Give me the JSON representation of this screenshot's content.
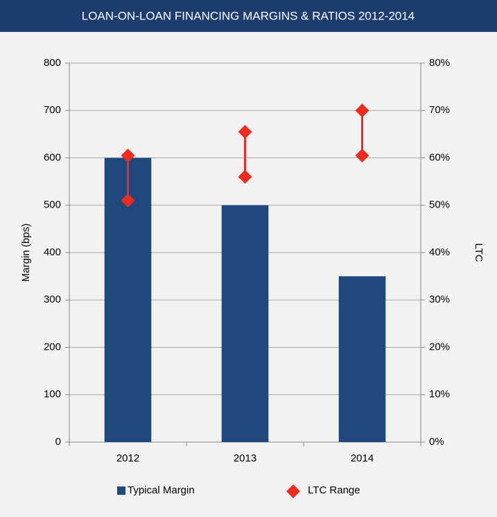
{
  "chart_data": {
    "type": "bar_range",
    "title": "LOAN-ON-LOAN FINANCING MARGINS & RATIOS 2012-2014",
    "y_label": "Margin (bps)",
    "y2_label": "LTC",
    "categories": [
      "2012",
      "2013",
      "2014"
    ],
    "series": [
      {
        "name": "Typical Margin",
        "color": "#1f497d",
        "values": [
          600,
          500,
          350
        ]
      },
      {
        "name": "LTC Range",
        "color": "#f02a1e",
        "axis": "y2",
        "low": [
          51,
          56,
          60.5
        ],
        "high": [
          60.5,
          65.5,
          70
        ]
      }
    ],
    "ylim": [
      0,
      800
    ],
    "yticks": [
      0,
      100,
      200,
      300,
      400,
      500,
      600,
      700,
      800
    ],
    "y2lim": [
      0,
      80
    ],
    "y2ticks": [
      {
        "value": 0,
        "label": "0%"
      },
      {
        "value": 10,
        "label": "10%"
      },
      {
        "value": 20,
        "label": "20%"
      },
      {
        "value": 30,
        "label": "30%"
      },
      {
        "value": 40,
        "label": "40%"
      },
      {
        "value": 50,
        "label": "50%"
      },
      {
        "value": 60,
        "label": "60%"
      },
      {
        "value": 70,
        "label": "70%"
      },
      {
        "value": 80,
        "label": "80%"
      }
    ],
    "grid": true,
    "legend": "bottom"
  }
}
